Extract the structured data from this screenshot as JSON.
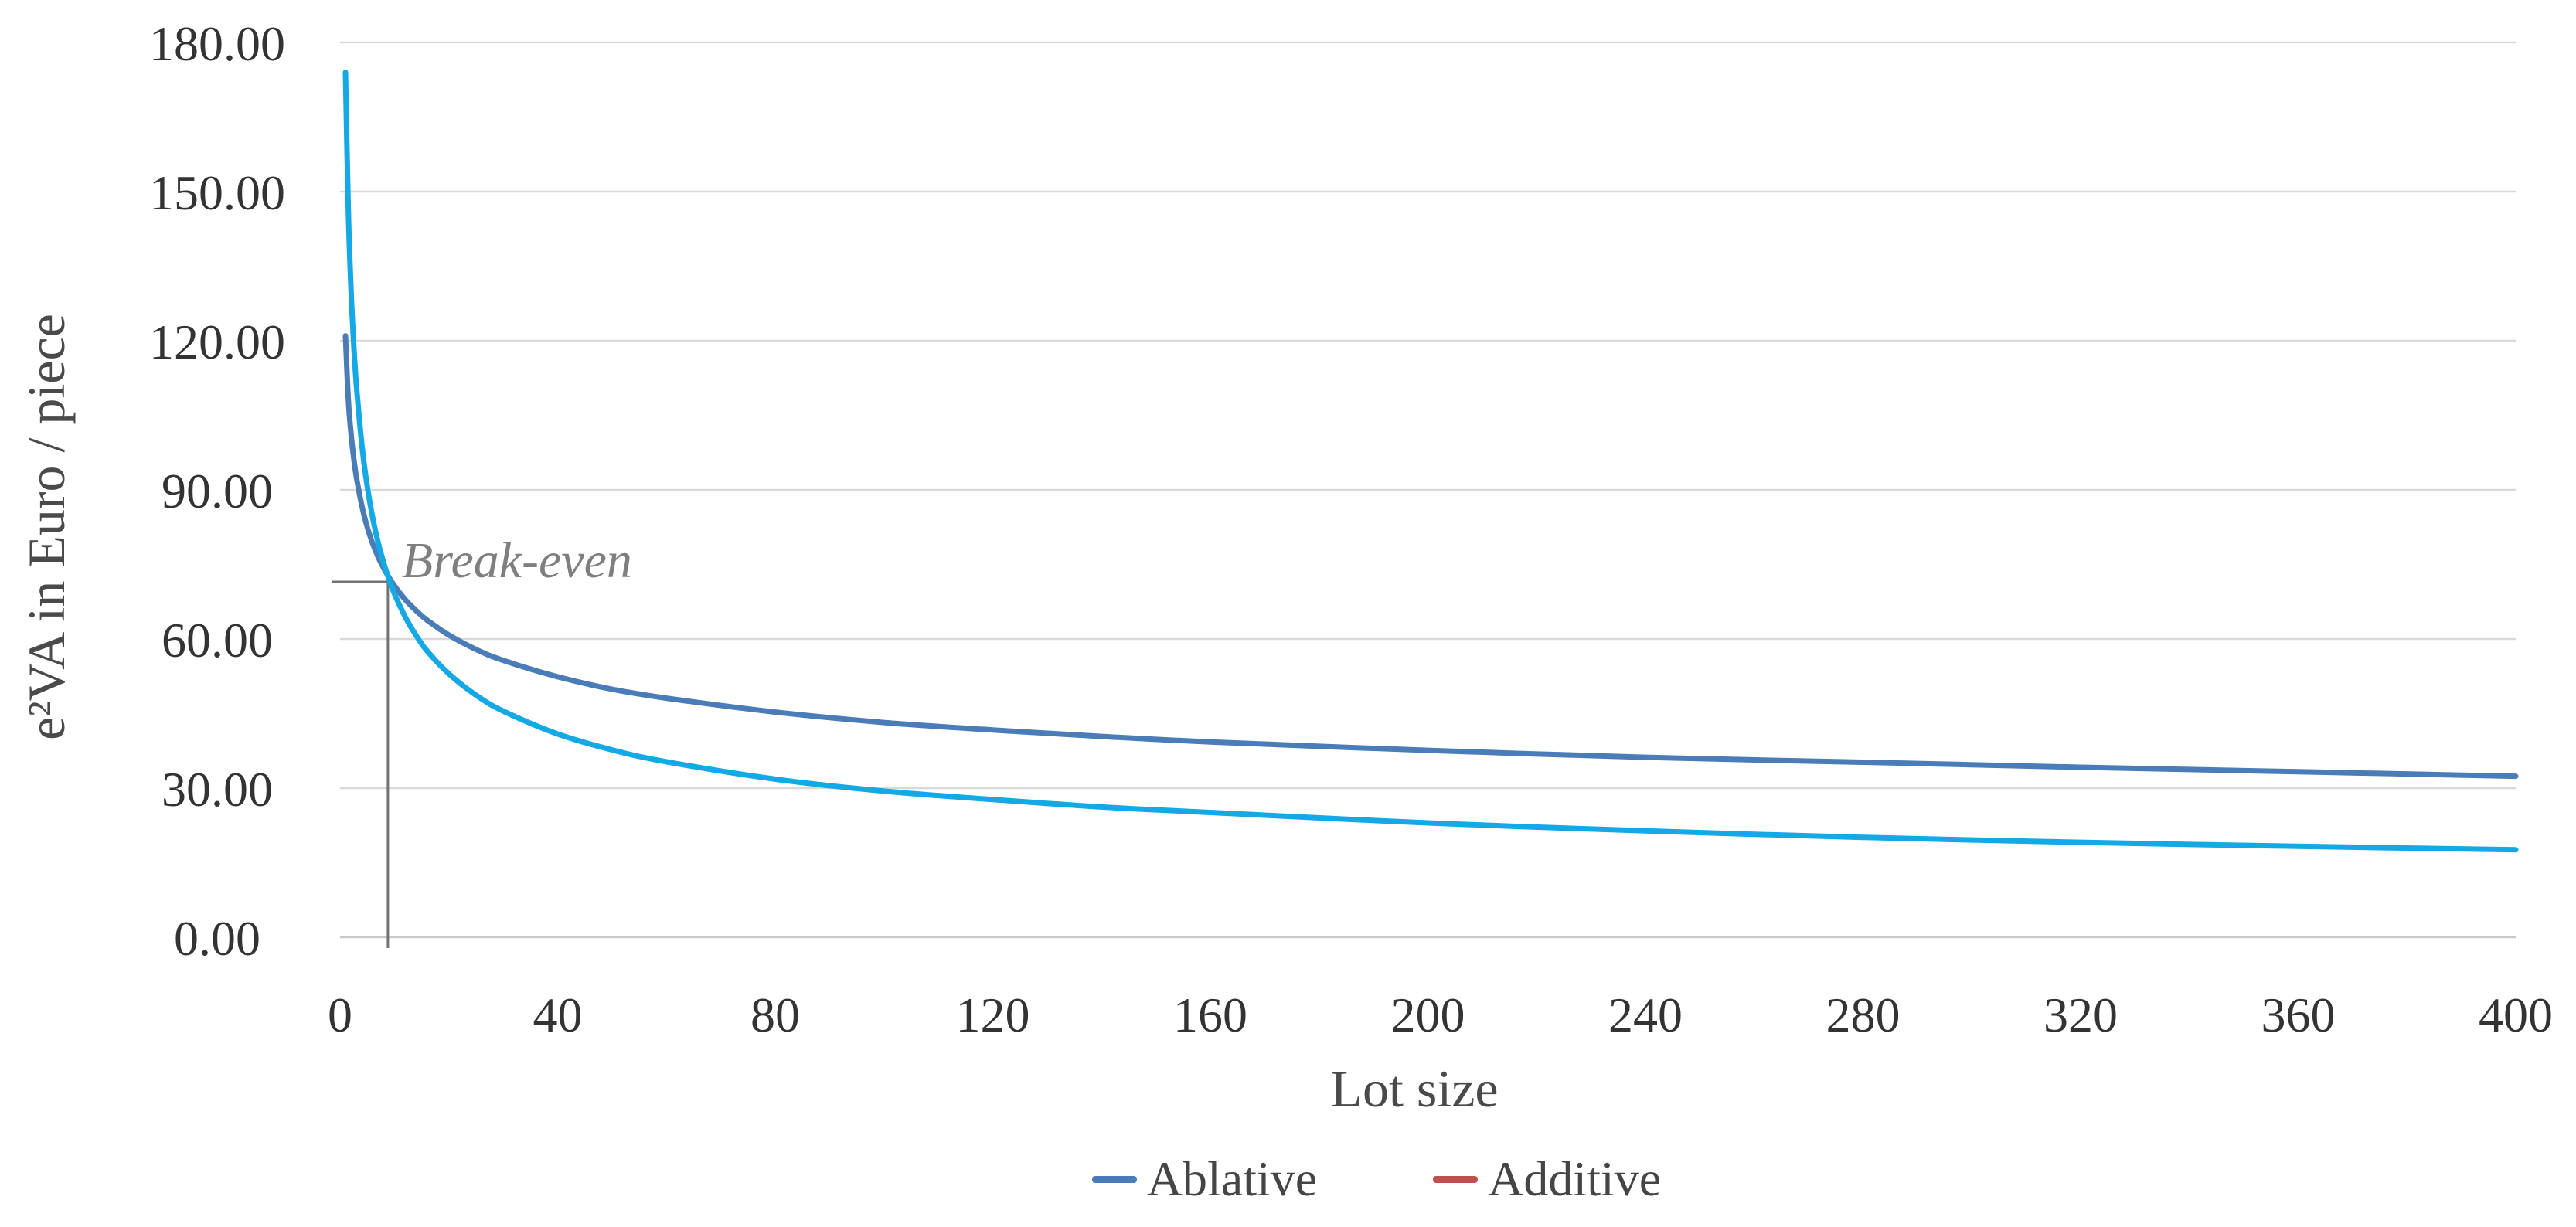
{
  "page": {
    "background": "#ffffff"
  },
  "chart_data": {
    "type": "line",
    "title": "",
    "xlabel": "Lot size",
    "ylabel": "e²VA in Euro / piece",
    "xlim": [
      0,
      400
    ],
    "ylim": [
      0,
      180
    ],
    "grid": "horizontal",
    "legend_position": "bottom-center",
    "xticks": {
      "values": [
        0,
        40,
        80,
        120,
        160,
        200,
        240,
        280,
        320,
        360,
        400
      ],
      "labels": [
        "0",
        "40",
        "80",
        "120",
        "160",
        "200",
        "240",
        "280",
        "320",
        "360",
        "400"
      ]
    },
    "yticks": {
      "values": [
        180,
        150,
        120,
        90,
        60,
        30,
        0
      ],
      "labels": [
        "180.00",
        "150.00",
        "120.00",
        "90.00",
        "60.00",
        "30.00",
        "0.00"
      ]
    },
    "annotation": {
      "text": "Break-even",
      "x": 8.8,
      "y": 71.5
    },
    "colors": {
      "gridline": "#d9d9d9",
      "axis_line": "#c9c9c9",
      "breakeven_line": "#737373",
      "tick_text": "#333333",
      "title_text": "#4a4a4a",
      "annotation_text": "#7f7f7f"
    },
    "series": [
      {
        "name": "Ablative",
        "line_color": "#4a7cb8",
        "legend_color": "#4a7cb8",
        "points": [
          [
            1,
            121
          ],
          [
            1.5,
            108.4
          ],
          [
            2,
            101.5
          ],
          [
            2.5,
            96.5
          ],
          [
            3,
            92.6
          ],
          [
            4,
            86.8
          ],
          [
            5,
            82.5
          ],
          [
            6,
            79.2
          ],
          [
            7,
            76.5
          ],
          [
            8,
            74.3
          ],
          [
            9,
            72.4
          ],
          [
            10,
            70.7
          ],
          [
            12,
            67.9
          ],
          [
            14,
            65.7
          ],
          [
            16,
            63.8
          ],
          [
            20,
            60.8
          ],
          [
            25,
            57.9
          ],
          [
            30,
            55.7
          ],
          [
            40,
            52.4
          ],
          [
            50,
            49.9
          ],
          [
            60,
            48.1
          ],
          [
            80,
            45.3
          ],
          [
            100,
            43.2
          ],
          [
            120,
            41.7
          ],
          [
            140,
            40.4
          ],
          [
            160,
            39.3
          ],
          [
            200,
            37.6
          ],
          [
            240,
            36.2
          ],
          [
            280,
            35.2
          ],
          [
            320,
            34.2
          ],
          [
            360,
            33.3
          ],
          [
            400,
            32.4
          ]
        ]
      },
      {
        "name": "Additive",
        "line_color": "#14a8e4",
        "legend_color": "#c0504d",
        "points": [
          [
            1,
            174
          ],
          [
            1.5,
            146.8
          ],
          [
            2,
            130.7
          ],
          [
            2.5,
            119.5
          ],
          [
            3,
            111.1
          ],
          [
            4,
            99.1
          ],
          [
            5,
            90.7
          ],
          [
            6,
            84.4
          ],
          [
            7,
            79.4
          ],
          [
            8,
            75.4
          ],
          [
            9,
            72
          ],
          [
            10,
            69.1
          ],
          [
            12,
            64.4
          ],
          [
            14,
            60.7
          ],
          [
            16,
            57.6
          ],
          [
            20,
            53
          ],
          [
            25,
            48.7
          ],
          [
            30,
            45.5
          ],
          [
            40,
            40.9
          ],
          [
            50,
            37.7
          ],
          [
            60,
            35.3
          ],
          [
            80,
            31.8
          ],
          [
            100,
            29.4
          ],
          [
            120,
            27.7
          ],
          [
            140,
            26.2
          ],
          [
            160,
            25.1
          ],
          [
            200,
            23
          ],
          [
            240,
            21.4
          ],
          [
            280,
            20.1
          ],
          [
            320,
            19.1
          ],
          [
            360,
            18.3
          ],
          [
            400,
            17.6
          ]
        ]
      }
    ]
  }
}
